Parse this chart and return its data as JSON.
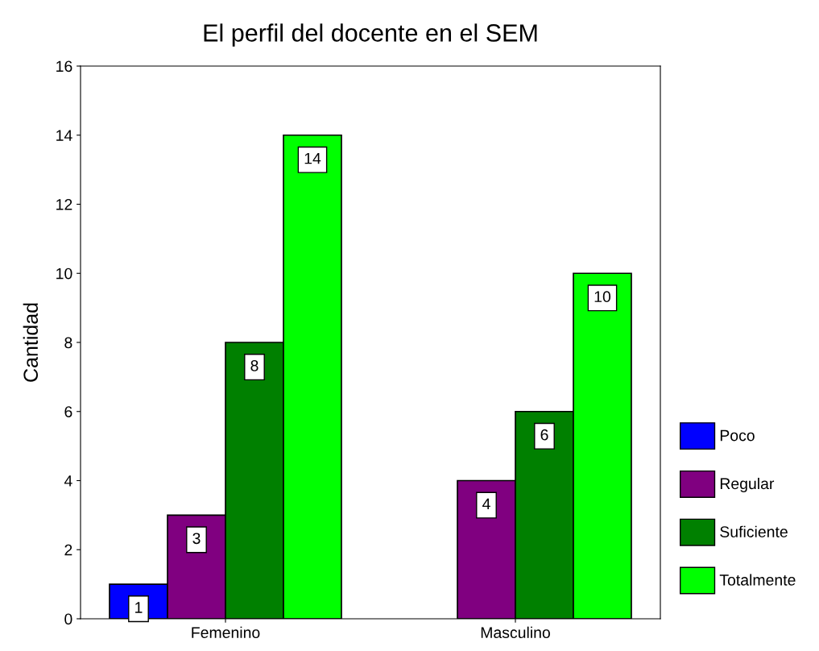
{
  "chart_data": {
    "type": "bar",
    "title": "El perfil del docente en el SEM",
    "ylabel": "Cantidad",
    "categories": [
      "Femenino",
      "Masculino"
    ],
    "series": [
      {
        "name": "Poco",
        "color": "#0000ff",
        "values": [
          1,
          null
        ]
      },
      {
        "name": "Regular",
        "color": "#800080",
        "values": [
          3,
          4
        ]
      },
      {
        "name": "Suficiente",
        "color": "#008000",
        "values": [
          8,
          6
        ]
      },
      {
        "name": "Totalmente",
        "color": "#00ff00",
        "values": [
          14,
          10
        ]
      }
    ],
    "ylim": [
      0,
      16
    ],
    "yticks": [
      0,
      2,
      4,
      6,
      8,
      10,
      12,
      14,
      16
    ],
    "grid": false,
    "legend": "right",
    "data_labels": true
  }
}
